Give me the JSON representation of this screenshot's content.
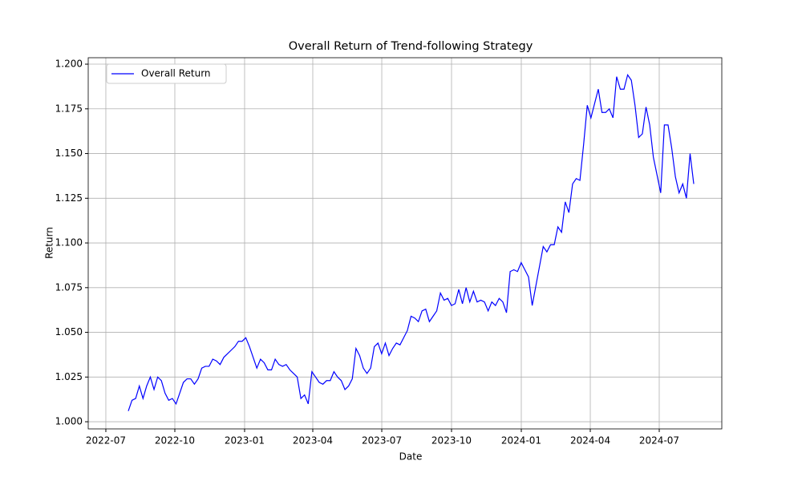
{
  "chart_data": {
    "type": "line",
    "title": "Overall Return of Trend-following Strategy",
    "x_label": "Date",
    "y_label": "Return",
    "series": [
      {
        "name": "Overall Return",
        "color": "#0000ff",
        "values": [
          1.006,
          1.012,
          1.013,
          1.02,
          1.013,
          1.02,
          1.025,
          1.018,
          1.025,
          1.023,
          1.016,
          1.012,
          1.013,
          1.01,
          1.016,
          1.022,
          1.024,
          1.024,
          1.021,
          1.024,
          1.03,
          1.031,
          1.031,
          1.035,
          1.034,
          1.032,
          1.036,
          1.038,
          1.04,
          1.042,
          1.045,
          1.045,
          1.047,
          1.042,
          1.036,
          1.03,
          1.035,
          1.033,
          1.029,
          1.029,
          1.035,
          1.032,
          1.031,
          1.032,
          1.029,
          1.027,
          1.025,
          1.013,
          1.015,
          1.01,
          1.028,
          1.025,
          1.022,
          1.021,
          1.023,
          1.023,
          1.028,
          1.025,
          1.023,
          1.018,
          1.02,
          1.024,
          1.041,
          1.037,
          1.03,
          1.027,
          1.03,
          1.042,
          1.044,
          1.038,
          1.044,
          1.037,
          1.041,
          1.044,
          1.043,
          1.047,
          1.051,
          1.059,
          1.058,
          1.056,
          1.062,
          1.063,
          1.056,
          1.059,
          1.062,
          1.072,
          1.068,
          1.069,
          1.065,
          1.066,
          1.074,
          1.066,
          1.075,
          1.067,
          1.073,
          1.067,
          1.068,
          1.067,
          1.062,
          1.067,
          1.065,
          1.069,
          1.067,
          1.061,
          1.084,
          1.085,
          1.084,
          1.089,
          1.085,
          1.081,
          1.065,
          1.076,
          1.087,
          1.098,
          1.095,
          1.099,
          1.099,
          1.109,
          1.106,
          1.123,
          1.117,
          1.133,
          1.136,
          1.135,
          1.155,
          1.177,
          1.17,
          1.178,
          1.186,
          1.173,
          1.173,
          1.175,
          1.17,
          1.193,
          1.186,
          1.186,
          1.194,
          1.191,
          1.177,
          1.159,
          1.161,
          1.176,
          1.166,
          1.148,
          1.138,
          1.128,
          1.166,
          1.166,
          1.153,
          1.137,
          1.128,
          1.133,
          1.125,
          1.15,
          1.133
        ]
      }
    ],
    "xlim": [
      -10.92,
      161.64
    ],
    "xticks": [
      {
        "value": -6.12,
        "label": "2022-07"
      },
      {
        "value": 12.67,
        "label": "2022-10"
      },
      {
        "value": 31.67,
        "label": "2023-01"
      },
      {
        "value": 50.24,
        "label": "2023-04"
      },
      {
        "value": 69.03,
        "label": "2023-07"
      },
      {
        "value": 88.03,
        "label": "2023-10"
      },
      {
        "value": 107.03,
        "label": "2024-01"
      },
      {
        "value": 125.82,
        "label": "2024-04"
      },
      {
        "value": 144.6,
        "label": "2024-07"
      }
    ],
    "ylim": [
      0.996,
      1.2036
    ],
    "yticks": [
      {
        "value": 1,
        "label": "1.000"
      },
      1.025,
      {
        "value": 1.05,
        "label": "1.050"
      },
      1.075,
      {
        "value": 1.1,
        "label": "1.100"
      },
      1.125,
      {
        "value": 1.15,
        "label": "1.150"
      },
      1.175,
      {
        "value": 1.2,
        "label": "1.200"
      }
    ],
    "grid": true,
    "legend": "upper left"
  }
}
